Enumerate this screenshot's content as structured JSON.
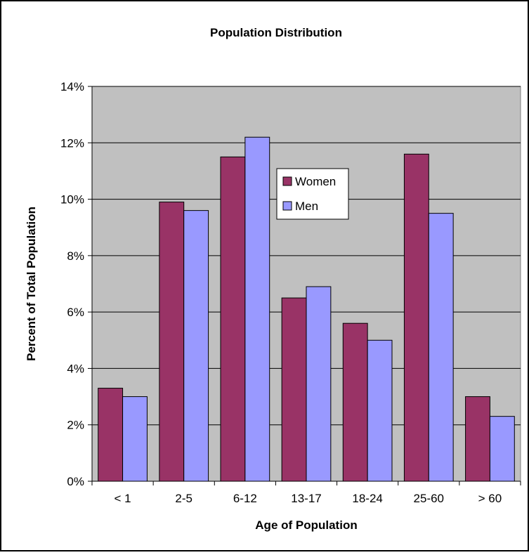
{
  "chart_data": {
    "type": "bar",
    "title": "Population Distribution",
    "xlabel": "Age of Population",
    "ylabel": "Percent of Total Population",
    "categories": [
      "< 1",
      "2-5",
      "6-12",
      "13-17",
      "18-24",
      "25-60",
      "> 60"
    ],
    "series": [
      {
        "name": "Women",
        "color": "#993366",
        "values": [
          3.3,
          9.9,
          11.5,
          6.5,
          5.6,
          11.6,
          3.0
        ]
      },
      {
        "name": "Men",
        "color": "#9999FF",
        "values": [
          3.0,
          9.6,
          12.2,
          6.9,
          5.0,
          9.5,
          2.3
        ]
      }
    ],
    "ylim": [
      0,
      14
    ],
    "yticks": [
      "0%",
      "2%",
      "4%",
      "6%",
      "8%",
      "10%",
      "12%",
      "14%"
    ],
    "grid": true,
    "plot_background": "#C0C0C0",
    "legend_position": "inside-top-center"
  }
}
